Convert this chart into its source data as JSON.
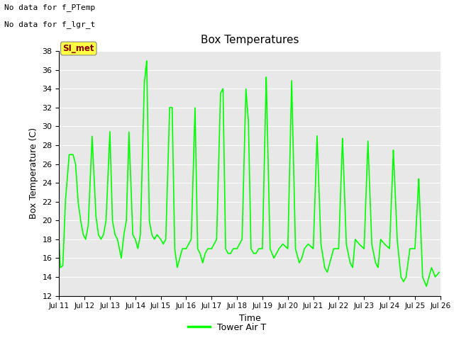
{
  "title": "Box Temperatures",
  "xlabel": "Time",
  "ylabel": "Box Temperature (C)",
  "ylim": [
    12,
    38
  ],
  "yticks": [
    12,
    14,
    16,
    18,
    20,
    22,
    24,
    26,
    28,
    30,
    32,
    34,
    36,
    38
  ],
  "plot_bg_color": "#e8e8e8",
  "line_color": "#00ff00",
  "line_width": 1.2,
  "annotation1": "No data for f_PTemp",
  "annotation2": "No data for f_lgr_t",
  "legend_label": "Tower Air T",
  "SI_met_label": "SI_met",
  "x_tick_labels": [
    "Jul 11",
    "Jul 12",
    "Jul 13",
    "Jul 14",
    "Jul 15",
    "Jul 16",
    "Jul 17",
    "Jul 18",
    "Jul 19",
    "Jul 20",
    "Jul 21",
    "Jul 22",
    "Jul 23",
    "Jul 24",
    "Jul 25",
    "Jul 26"
  ],
  "keypoints_x": [
    0.0,
    0.05,
    0.15,
    0.25,
    0.4,
    0.55,
    0.65,
    0.75,
    0.85,
    0.95,
    1.05,
    1.15,
    1.3,
    1.45,
    1.55,
    1.65,
    1.75,
    1.85,
    2.0,
    2.1,
    2.2,
    2.3,
    2.45,
    2.55,
    2.65,
    2.75,
    2.9,
    3.0,
    3.1,
    3.2,
    3.35,
    3.45,
    3.55,
    3.65,
    3.75,
    3.85,
    4.0,
    4.1,
    4.2,
    4.35,
    4.45,
    4.55,
    4.65,
    4.75,
    4.85,
    5.0,
    5.1,
    5.2,
    5.35,
    5.45,
    5.55,
    5.65,
    5.75,
    5.85,
    6.0,
    6.1,
    6.2,
    6.35,
    6.45,
    6.55,
    6.65,
    6.75,
    6.85,
    7.0,
    7.1,
    7.2,
    7.35,
    7.45,
    7.55,
    7.65,
    7.75,
    7.85,
    8.0,
    8.15,
    8.3,
    8.45,
    8.55,
    8.65,
    8.8,
    9.0,
    9.15,
    9.3,
    9.45,
    9.55,
    9.65,
    9.8,
    10.0,
    10.15,
    10.3,
    10.45,
    10.55,
    10.65,
    10.8,
    11.0,
    11.15,
    11.3,
    11.45,
    11.55,
    11.65,
    11.8,
    12.0,
    12.15,
    12.3,
    12.45,
    12.55,
    12.65,
    12.8,
    13.0,
    13.15,
    13.3,
    13.45,
    13.55,
    13.65,
    13.8,
    14.0,
    14.15,
    14.3,
    14.45,
    14.55,
    14.65,
    14.8,
    14.95
  ],
  "keypoints_y": [
    17.8,
    15.0,
    15.2,
    22.0,
    27.0,
    27.0,
    26.0,
    22.0,
    20.0,
    18.5,
    18.0,
    19.5,
    29.0,
    20.5,
    18.5,
    18.0,
    18.5,
    20.0,
    29.5,
    20.0,
    18.5,
    18.0,
    16.0,
    18.5,
    20.0,
    29.5,
    18.5,
    18.0,
    17.0,
    18.5,
    34.5,
    37.0,
    20.0,
    18.5,
    18.0,
    18.5,
    18.0,
    17.5,
    18.0,
    32.0,
    32.0,
    17.0,
    15.0,
    16.0,
    17.0,
    17.0,
    17.5,
    18.0,
    32.0,
    17.0,
    16.5,
    15.5,
    16.5,
    17.0,
    17.0,
    17.5,
    18.0,
    33.5,
    34.0,
    17.0,
    16.5,
    16.5,
    17.0,
    17.0,
    17.5,
    18.0,
    34.0,
    30.5,
    17.0,
    16.5,
    16.5,
    17.0,
    17.0,
    35.3,
    17.0,
    16.0,
    16.5,
    17.0,
    17.5,
    17.0,
    35.0,
    17.0,
    15.5,
    16.0,
    17.0,
    17.5,
    17.0,
    29.0,
    17.5,
    15.0,
    14.5,
    15.5,
    17.0,
    17.0,
    28.8,
    17.5,
    15.5,
    15.0,
    18.0,
    17.5,
    17.0,
    28.5,
    17.5,
    15.5,
    15.0,
    18.0,
    17.5,
    17.0,
    27.5,
    18.0,
    14.0,
    13.5,
    14.0,
    17.0,
    17.0,
    24.5,
    14.0,
    13.0,
    14.0,
    15.0,
    14.0,
    14.5
  ]
}
